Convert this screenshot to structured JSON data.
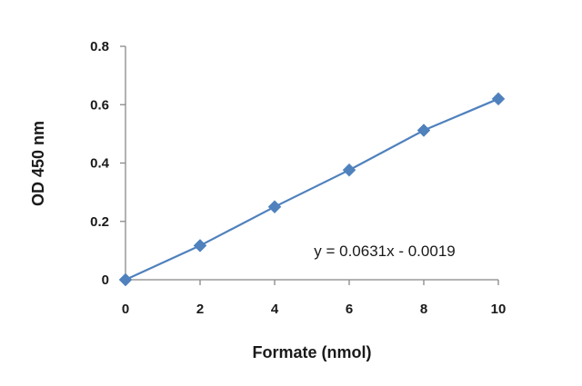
{
  "chart_data": {
    "type": "scatter",
    "xlabel": "Formate (nmol)",
    "ylabel": "OD 450 nm",
    "x": [
      0,
      2,
      4,
      6,
      8,
      10
    ],
    "series": [
      {
        "values": [
          0.0,
          0.117,
          0.25,
          0.376,
          0.512,
          0.62
        ],
        "color": "#4f81bd",
        "marker": "diamond",
        "line": true
      }
    ],
    "xlim": [
      0,
      10
    ],
    "ylim": [
      0,
      0.8
    ],
    "x_ticks": [
      0,
      2,
      4,
      6,
      8,
      10
    ],
    "y_ticks": [
      0,
      0.2,
      0.4,
      0.6,
      0.8
    ],
    "x_tick_labels": [
      "0",
      "2",
      "4",
      "6",
      "8",
      "10"
    ],
    "y_tick_labels": [
      "0",
      "0.2",
      "0.4",
      "0.6",
      "0.8"
    ],
    "annotation": "y = 0.0631x - 0.0019",
    "grid": false,
    "legend": false
  }
}
